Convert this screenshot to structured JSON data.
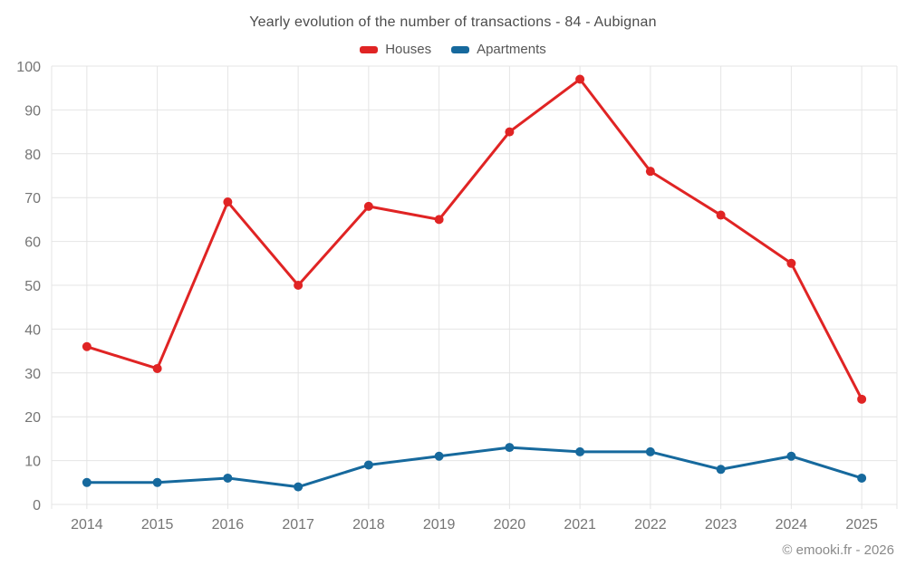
{
  "title": "Yearly evolution of the number of transactions - 84 - Aubignan",
  "footer": "© emooki.fr - 2026",
  "colors": {
    "background": "#ffffff",
    "grid": "#e4e4e4",
    "axis_text": "#757575",
    "title_text": "#4c4c4c",
    "footer_text": "#8a8a8a",
    "houses": "#e02424",
    "apartments": "#16699d"
  },
  "chart_data": {
    "type": "line",
    "title": "Yearly evolution of the number of transactions - 84 - Aubignan",
    "xlabel": "",
    "ylabel": "",
    "categories": [
      "2014",
      "2015",
      "2016",
      "2017",
      "2018",
      "2019",
      "2020",
      "2021",
      "2022",
      "2023",
      "2024",
      "2025"
    ],
    "series": [
      {
        "name": "Houses",
        "color": "#e02424",
        "values": [
          36,
          31,
          69,
          50,
          68,
          65,
          85,
          97,
          76,
          66,
          55,
          24
        ]
      },
      {
        "name": "Apartments",
        "color": "#16699d",
        "values": [
          5,
          5,
          6,
          4,
          9,
          11,
          13,
          12,
          12,
          8,
          11,
          6
        ]
      }
    ],
    "ylim": [
      0,
      100
    ],
    "ytick_step": 10,
    "grid": true,
    "legend_position": "top"
  }
}
